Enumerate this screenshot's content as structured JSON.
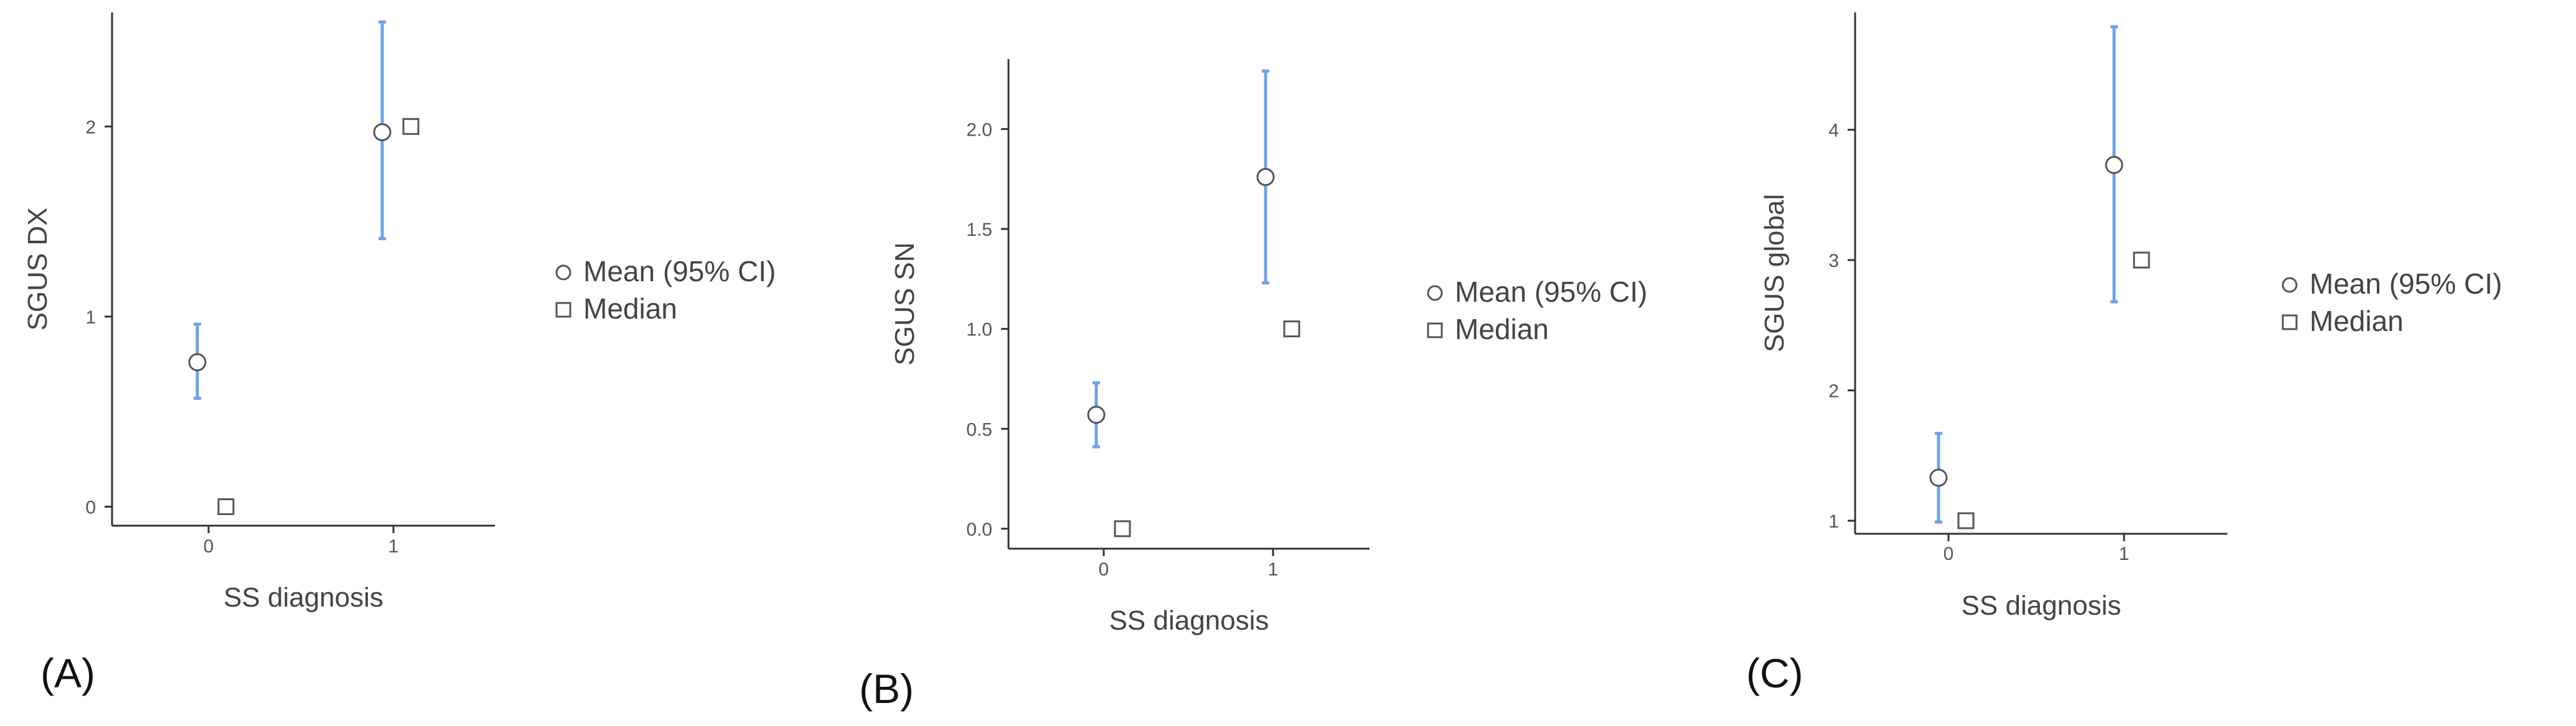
{
  "colors": {
    "ci": "#6ea3e6",
    "axis": "#333333",
    "marker_stroke": "#555555",
    "marker_fill": "#ffffff"
  },
  "legend": {
    "mean_label": "Mean (95% CI)",
    "median_label": "Median"
  },
  "chart_data": [
    {
      "type": "scatter",
      "panel_label": "(A)",
      "xlabel": "SS diagnosis",
      "ylabel": "SGUS DX",
      "categories": [
        "0",
        "1"
      ],
      "yticks": [
        0,
        1,
        2
      ],
      "ylim": [
        -0.1,
        2.6
      ],
      "mean": [
        0.76,
        1.97
      ],
      "ci_low": [
        0.57,
        1.41
      ],
      "ci_high": [
        0.96,
        2.55
      ],
      "median": [
        0,
        2
      ]
    },
    {
      "type": "scatter",
      "panel_label": "(B)",
      "xlabel": "SS diagnosis",
      "ylabel": "SGUS SN",
      "categories": [
        "0",
        "1"
      ],
      "yticks": [
        0.0,
        0.5,
        1.0,
        1.5,
        2.0
      ],
      "ytick_labels": [
        "0.0",
        "0.5",
        "1.0",
        "1.5",
        "2.0"
      ],
      "ylim": [
        -0.1,
        2.35
      ],
      "mean": [
        0.57,
        1.76
      ],
      "ci_low": [
        0.41,
        1.23
      ],
      "ci_high": [
        0.73,
        2.29
      ],
      "median": [
        0,
        1
      ]
    },
    {
      "type": "scatter",
      "panel_label": "(C)",
      "xlabel": "SS diagnosis",
      "ylabel": "SGUS global",
      "categories": [
        "0",
        "1"
      ],
      "yticks": [
        1,
        2,
        3,
        4
      ],
      "ylim": [
        0.9,
        4.9
      ],
      "mean": [
        1.33,
        3.73
      ],
      "ci_low": [
        0.99,
        2.68
      ],
      "ci_high": [
        1.67,
        4.79
      ],
      "median": [
        1,
        3
      ]
    }
  ]
}
